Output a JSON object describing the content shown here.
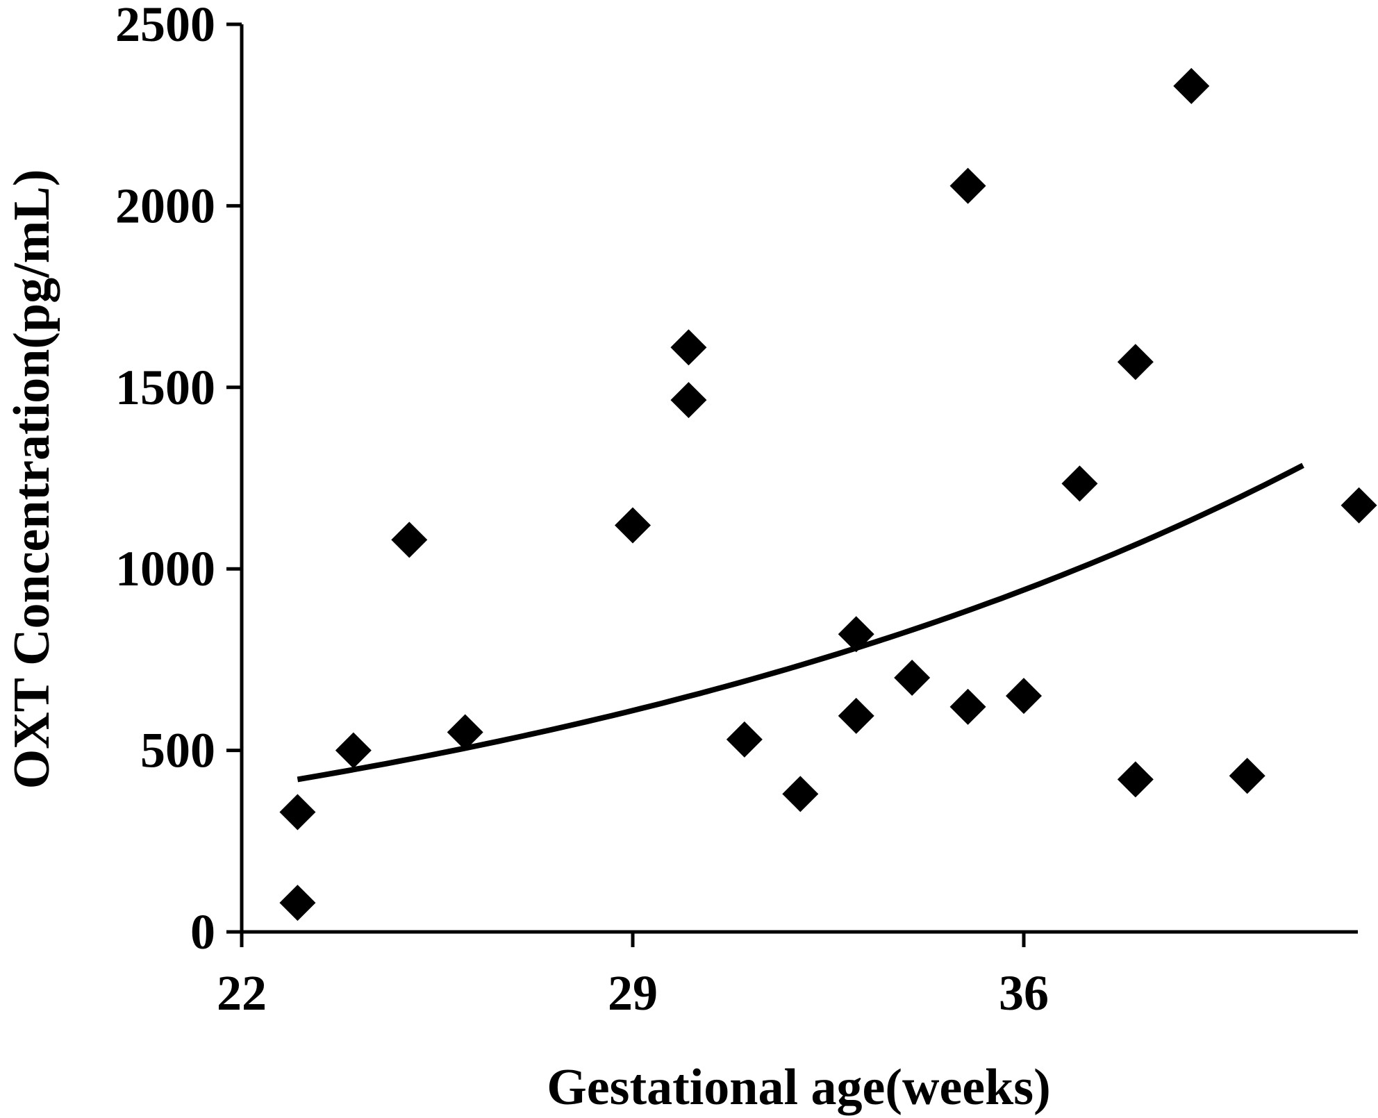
{
  "chart_data": {
    "type": "scatter",
    "title": "",
    "xlabel": "Gestational age(weeks)",
    "ylabel": "OXT Concentration(pg/mL)",
    "xlim": [
      22,
      42
    ],
    "ylim": [
      0,
      2500
    ],
    "x_ticks": [
      22,
      29,
      36
    ],
    "y_ticks": [
      0,
      500,
      1000,
      1500,
      2000,
      2500
    ],
    "x_tick_labels": [
      "22",
      "29",
      "36"
    ],
    "y_tick_labels": [
      "0",
      "500",
      "1000",
      "1500",
      "2000",
      "2500"
    ],
    "grid": false,
    "legend": "none",
    "marker": "diamond",
    "marker_color": "#000000",
    "trendline": {
      "type": "exponential",
      "x_range": [
        23,
        41
      ],
      "y_start": 420,
      "y_end": 1285,
      "color": "#000000"
    },
    "series": [
      {
        "points": [
          {
            "x": 23,
            "y": 80
          },
          {
            "x": 23,
            "y": 330
          },
          {
            "x": 24,
            "y": 500
          },
          {
            "x": 25,
            "y": 1080
          },
          {
            "x": 26,
            "y": 550
          },
          {
            "x": 29,
            "y": 1120
          },
          {
            "x": 30,
            "y": 1610
          },
          {
            "x": 30,
            "y": 1465
          },
          {
            "x": 31,
            "y": 530
          },
          {
            "x": 32,
            "y": 380
          },
          {
            "x": 33,
            "y": 820
          },
          {
            "x": 33,
            "y": 595
          },
          {
            "x": 34,
            "y": 700
          },
          {
            "x": 35,
            "y": 2055
          },
          {
            "x": 35,
            "y": 620
          },
          {
            "x": 36,
            "y": 650
          },
          {
            "x": 37,
            "y": 1235
          },
          {
            "x": 38,
            "y": 1570
          },
          {
            "x": 38,
            "y": 420
          },
          {
            "x": 39,
            "y": 2330
          },
          {
            "x": 40,
            "y": 430
          },
          {
            "x": 42,
            "y": 1175
          }
        ]
      }
    ]
  }
}
